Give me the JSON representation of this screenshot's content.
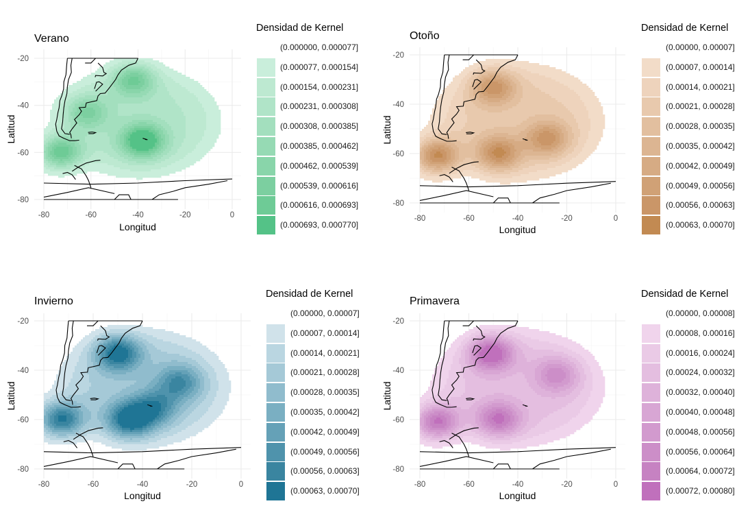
{
  "chart_data": [
    {
      "type": "heatmap",
      "subtype": "kernel-density-filled-contour-map",
      "title": "Verano",
      "xlabel": "Longitud",
      "ylabel": "Latitud",
      "xlim": [
        -80,
        0
      ],
      "ylim": [
        -80,
        -20
      ],
      "x_ticks": [
        "-80",
        "-60",
        "-40",
        "-20",
        "0"
      ],
      "y_ticks": [
        "-20",
        "-40",
        "-60",
        "-80"
      ],
      "grid": true,
      "legend_title": "Densidad de Kernel",
      "legend_position": "right",
      "max_density": 0.00077,
      "legend": [
        {
          "label": "(0.000000, 0.000077]",
          "color": "#ffffff"
        },
        {
          "label": "(0.000077, 0.000154]",
          "color": "#c9eedb"
        },
        {
          "label": "(0.000154, 0.000231]",
          "color": "#bde9d1"
        },
        {
          "label": "(0.000231, 0.000308]",
          "color": "#b0e4c8"
        },
        {
          "label": "(0.000308, 0.000385]",
          "color": "#a3dfbe"
        },
        {
          "label": "(0.000385, 0.000462]",
          "color": "#96dab4"
        },
        {
          "label": "(0.000462, 0.000539]",
          "color": "#89d5aa"
        },
        {
          "label": "(0.000539, 0.000616]",
          "color": "#7ccfa0"
        },
        {
          "label": "(0.000616, 0.000693]",
          "color": "#6ecb96"
        },
        {
          "label": "(0.000693, 0.000770]",
          "color": "#54c287"
        }
      ],
      "density_peaks": [
        {
          "lon": -73,
          "lat": -60,
          "relative": 0.95
        },
        {
          "lon": -38,
          "lat": -55,
          "relative": 1.0
        },
        {
          "lon": -42,
          "lat": -29,
          "relative": 0.7
        },
        {
          "lon": -62,
          "lat": -43,
          "relative": 0.55
        }
      ]
    },
    {
      "type": "heatmap",
      "subtype": "kernel-density-filled-contour-map",
      "title": "Otoño",
      "xlabel": "Longitud",
      "ylabel": "Latitud",
      "xlim": [
        -80,
        0
      ],
      "ylim": [
        -80,
        -20
      ],
      "x_ticks": [
        "-80",
        "-60",
        "-40",
        "-20",
        "0"
      ],
      "y_ticks": [
        "-20",
        "-40",
        "-60",
        "-80"
      ],
      "grid": true,
      "legend_title": "Densidad de Kernel",
      "legend_position": "right",
      "max_density": 0.0007,
      "legend": [
        {
          "label": "(0.00000, 0.00007]",
          "color": "#ffffff"
        },
        {
          "label": "(0.00007, 0.00014]",
          "color": "#f2dcc8"
        },
        {
          "label": "(0.00014, 0.00021]",
          "color": "#eed3bc"
        },
        {
          "label": "(0.00021, 0.00028]",
          "color": "#e8c9ad"
        },
        {
          "label": "(0.00028, 0.00035]",
          "color": "#e2bf9f"
        },
        {
          "label": "(0.00035, 0.00042]",
          "color": "#dcb592"
        },
        {
          "label": "(0.00042, 0.00049]",
          "color": "#d6ab84"
        },
        {
          "label": "(0.00049, 0.00056]",
          "color": "#d0a176"
        },
        {
          "label": "(0.00056, 0.00063]",
          "color": "#ca9668"
        },
        {
          "label": "(0.00063, 0.00070]",
          "color": "#c28a52"
        }
      ],
      "density_peaks": [
        {
          "lon": -73,
          "lat": -61,
          "relative": 1.0
        },
        {
          "lon": -48,
          "lat": -60,
          "relative": 0.75
        },
        {
          "lon": -50,
          "lat": -33,
          "relative": 0.7
        },
        {
          "lon": -28,
          "lat": -54,
          "relative": 0.65
        }
      ]
    },
    {
      "type": "heatmap",
      "subtype": "kernel-density-filled-contour-map",
      "title": "Invierno",
      "xlabel": "Longitud",
      "ylabel": "Latitud",
      "xlim": [
        -80,
        0
      ],
      "ylim": [
        -80,
        -20
      ],
      "x_ticks": [
        "-80",
        "-60",
        "-40",
        "-20",
        "0"
      ],
      "y_ticks": [
        "-20",
        "-40",
        "-60",
        "-80"
      ],
      "grid": true,
      "legend_title": "Densidad de Kernel",
      "legend_position": "right",
      "max_density": 0.0007,
      "legend": [
        {
          "label": "(0.00000, 0.00007]",
          "color": "#ffffff"
        },
        {
          "label": "(0.00007, 0.00014]",
          "color": "#d0e2ea"
        },
        {
          "label": "(0.00014, 0.00021]",
          "color": "#bad6e1"
        },
        {
          "label": "(0.00021, 0.00028]",
          "color": "#a5c9d7"
        },
        {
          "label": "(0.00028, 0.00035]",
          "color": "#90bccd"
        },
        {
          "label": "(0.00035, 0.00042]",
          "color": "#7aafc2"
        },
        {
          "label": "(0.00042, 0.00049]",
          "color": "#65a1b7"
        },
        {
          "label": "(0.00049, 0.00056]",
          "color": "#4f93ac"
        },
        {
          "label": "(0.00056, 0.00063]",
          "color": "#3a85a0"
        },
        {
          "label": "(0.00063, 0.00070]",
          "color": "#1f7595"
        }
      ],
      "density_peaks": [
        {
          "lon": -73,
          "lat": -60,
          "relative": 1.0
        },
        {
          "lon": -45,
          "lat": -60,
          "relative": 0.95
        },
        {
          "lon": -50,
          "lat": -33,
          "relative": 0.9
        },
        {
          "lon": -25,
          "lat": -45,
          "relative": 0.6
        },
        {
          "lon": -35,
          "lat": -55,
          "relative": 0.6
        }
      ]
    },
    {
      "type": "heatmap",
      "subtype": "kernel-density-filled-contour-map",
      "title": "Primavera",
      "xlabel": "Longitud",
      "ylabel": "Latitud",
      "xlim": [
        -80,
        0
      ],
      "ylim": [
        -80,
        -20
      ],
      "x_ticks": [
        "-80",
        "-60",
        "-40",
        "-20",
        "0"
      ],
      "y_ticks": [
        "-20",
        "-40",
        "-60",
        "-80"
      ],
      "grid": true,
      "legend_title": "Densidad de Kernel",
      "legend_position": "right",
      "max_density": 0.0008,
      "legend": [
        {
          "label": "(0.00000, 0.00008]",
          "color": "#ffffff"
        },
        {
          "label": "(0.00008, 0.00016]",
          "color": "#f0d4ec"
        },
        {
          "label": "(0.00016, 0.00024]",
          "color": "#eacaE6"
        },
        {
          "label": "(0.00024, 0.00032]",
          "color": "#e4bee0"
        },
        {
          "label": "(0.00032, 0.00040]",
          "color": "#deb2da"
        },
        {
          "label": "(0.00040, 0.00048]",
          "color": "#d8a6d4"
        },
        {
          "label": "(0.00048, 0.00056]",
          "color": "#d29ace"
        },
        {
          "label": "(0.00056, 0.00064]",
          "color": "#cc8ec8"
        },
        {
          "label": "(0.00064, 0.00072]",
          "color": "#c682c2"
        },
        {
          "label": "(0.00072, 0.00080]",
          "color": "#c070bc"
        }
      ],
      "density_peaks": [
        {
          "lon": -73,
          "lat": -61,
          "relative": 1.0
        },
        {
          "lon": -51,
          "lat": -33,
          "relative": 0.95
        },
        {
          "lon": -48,
          "lat": -60,
          "relative": 0.75
        },
        {
          "lon": -24,
          "lat": -42,
          "relative": 0.55
        }
      ]
    }
  ]
}
